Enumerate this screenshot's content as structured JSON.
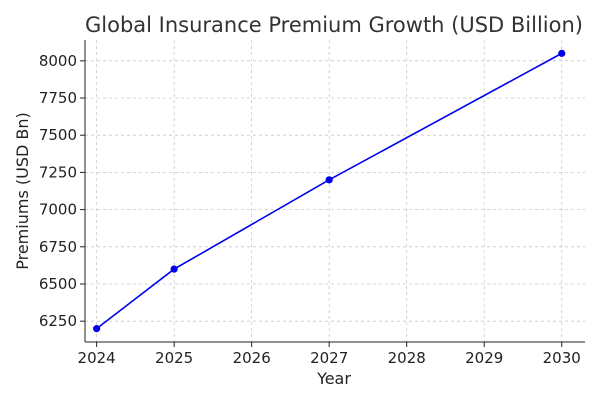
{
  "chart_data": {
    "type": "line",
    "title": "Global Insurance Premium Growth (USD Billion)",
    "xlabel": "Year",
    "ylabel": "Premiums (USD Bn)",
    "x_ticks": [
      "2024",
      "2025",
      "2026",
      "2027",
      "2028",
      "2029",
      "2030"
    ],
    "y_ticks": [
      "6250",
      "6500",
      "6750",
      "7000",
      "7250",
      "7500",
      "7750",
      "8000"
    ],
    "xlim": [
      2023.85,
      2030.3
    ],
    "ylim": [
      6110,
      8140
    ],
    "grid": true,
    "series": [
      {
        "color": "#0000ee",
        "x": [
          2024,
          2025,
          2027,
          2030
        ],
        "y": [
          6200,
          6600,
          7200,
          8050
        ]
      }
    ]
  }
}
